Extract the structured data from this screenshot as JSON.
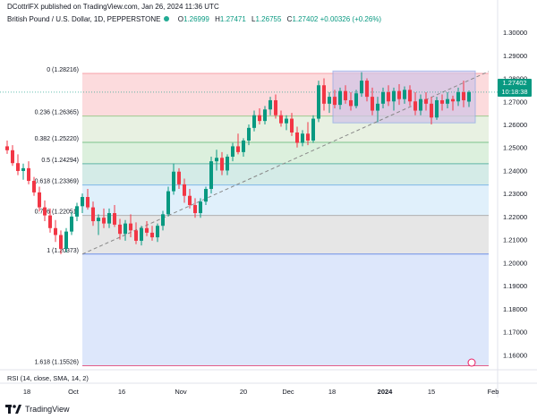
{
  "header": {
    "published_by": "DCottrlFX published on TradingView.com, Jan 26, 2024 11:36 UTC"
  },
  "legend": {
    "symbol": "British Pound / U.S. Dollar, 1D, PEPPERSTONE",
    "open_label": "O",
    "open": "1.26999",
    "high_label": "H",
    "high": "1.27471",
    "low_label": "L",
    "low": "1.26755",
    "close_label": "C",
    "close": "1.27402",
    "change": "+0.00326 (+0.26%)"
  },
  "price_tag": {
    "price": "1.27402",
    "countdown": "10:18:38"
  },
  "rsi_label": "RSI (14, close, SMA, 14, 2)",
  "footer": {
    "brand": "TradingView"
  },
  "colors": {
    "up": "#089981",
    "down": "#f23645",
    "fib0_zone": "#fcd7d9",
    "fib236_zone": "#e6f0df",
    "fib382_zone": "#d8eed9",
    "fib5_zone": "#cfe9e4",
    "fib618_zone": "#ddeefb",
    "fib786_zone": "#e3e3e3",
    "fib1_zone": "#d9e4fb",
    "rectangle": "#d3c5e6"
  },
  "chart_data": {
    "type": "candlestick",
    "title": "British Pound / U.S. Dollar, 1D, PEPPERSTONE",
    "ylim": [
      1.1535,
      1.3078
    ],
    "y_ticks": [
      "1.30000",
      "1.29000",
      "1.28000",
      "1.27000",
      "1.26000",
      "1.25000",
      "1.24000",
      "1.23000",
      "1.22000",
      "1.21000",
      "1.20000",
      "1.19000",
      "1.18000",
      "1.17000",
      "1.16000"
    ],
    "x_ticks": [
      "18",
      "Oct",
      "16",
      "Nov",
      "20",
      "Dec",
      "18",
      "2024",
      "15",
      "Feb"
    ],
    "fibonacci": [
      {
        "ratio": "0",
        "price": 1.28216,
        "label": "0 (1.28216)"
      },
      {
        "ratio": "0.236",
        "price": 1.26365,
        "label": "0.236 (1.26365)"
      },
      {
        "ratio": "0.382",
        "price": 1.2522,
        "label": "0.382 (1.25220)"
      },
      {
        "ratio": "0.5",
        "price": 1.24294,
        "label": "0.5 (1.24294)"
      },
      {
        "ratio": "0.618",
        "price": 1.23369,
        "label": "0.618 (1.23369)"
      },
      {
        "ratio": "0.786",
        "price": 1.22051,
        "label": "0.786 (1.22051)"
      },
      {
        "ratio": "1",
        "price": 1.20373,
        "label": "1 (1.20373)"
      },
      {
        "ratio": "1.618",
        "price": 1.15526,
        "label": "1.618 (1.15526)"
      }
    ],
    "range_box": {
      "top": 1.2832,
      "bottom": 1.2607
    },
    "current_price": 1.27402,
    "candles": [
      {
        "o": 1.2505,
        "h": 1.253,
        "l": 1.2472,
        "c": 1.2488
      },
      {
        "o": 1.2488,
        "h": 1.251,
        "l": 1.242,
        "c": 1.2432
      },
      {
        "o": 1.2432,
        "h": 1.247,
        "l": 1.238,
        "c": 1.2398
      },
      {
        "o": 1.2398,
        "h": 1.243,
        "l": 1.236,
        "c": 1.241
      },
      {
        "o": 1.241,
        "h": 1.244,
        "l": 1.234,
        "c": 1.2355
      },
      {
        "o": 1.2355,
        "h": 1.2372,
        "l": 1.229,
        "c": 1.2305
      },
      {
        "o": 1.2305,
        "h": 1.233,
        "l": 1.2222,
        "c": 1.224
      },
      {
        "o": 1.224,
        "h": 1.227,
        "l": 1.218,
        "c": 1.2205
      },
      {
        "o": 1.2205,
        "h": 1.2235,
        "l": 1.213,
        "c": 1.215
      },
      {
        "o": 1.215,
        "h": 1.2185,
        "l": 1.209,
        "c": 1.212
      },
      {
        "o": 1.212,
        "h": 1.214,
        "l": 1.2037,
        "c": 1.206
      },
      {
        "o": 1.206,
        "h": 1.215,
        "l": 1.2045,
        "c": 1.2135
      },
      {
        "o": 1.2135,
        "h": 1.222,
        "l": 1.212,
        "c": 1.22
      },
      {
        "o": 1.22,
        "h": 1.226,
        "l": 1.218,
        "c": 1.2245
      },
      {
        "o": 1.2245,
        "h": 1.23,
        "l": 1.2215,
        "c": 1.2285
      },
      {
        "o": 1.2285,
        "h": 1.232,
        "l": 1.223,
        "c": 1.224
      },
      {
        "o": 1.224,
        "h": 1.2265,
        "l": 1.216,
        "c": 1.218
      },
      {
        "o": 1.218,
        "h": 1.221,
        "l": 1.212,
        "c": 1.2195
      },
      {
        "o": 1.2195,
        "h": 1.2235,
        "l": 1.215,
        "c": 1.217
      },
      {
        "o": 1.217,
        "h": 1.2235,
        "l": 1.215,
        "c": 1.2215
      },
      {
        "o": 1.2215,
        "h": 1.225,
        "l": 1.2155,
        "c": 1.2165
      },
      {
        "o": 1.2165,
        "h": 1.219,
        "l": 1.21,
        "c": 1.2125
      },
      {
        "o": 1.2125,
        "h": 1.2185,
        "l": 1.2095,
        "c": 1.217
      },
      {
        "o": 1.217,
        "h": 1.221,
        "l": 1.211,
        "c": 1.214
      },
      {
        "o": 1.214,
        "h": 1.2175,
        "l": 1.208,
        "c": 1.2095
      },
      {
        "o": 1.2095,
        "h": 1.216,
        "l": 1.2075,
        "c": 1.215
      },
      {
        "o": 1.215,
        "h": 1.218,
        "l": 1.2115,
        "c": 1.213
      },
      {
        "o": 1.213,
        "h": 1.216,
        "l": 1.2095,
        "c": 1.211
      },
      {
        "o": 1.211,
        "h": 1.217,
        "l": 1.209,
        "c": 1.216
      },
      {
        "o": 1.216,
        "h": 1.2225,
        "l": 1.214,
        "c": 1.221
      },
      {
        "o": 1.221,
        "h": 1.233,
        "l": 1.22,
        "c": 1.231
      },
      {
        "o": 1.231,
        "h": 1.243,
        "l": 1.2295,
        "c": 1.2395
      },
      {
        "o": 1.2395,
        "h": 1.241,
        "l": 1.232,
        "c": 1.234
      },
      {
        "o": 1.234,
        "h": 1.2365,
        "l": 1.226,
        "c": 1.229
      },
      {
        "o": 1.229,
        "h": 1.232,
        "l": 1.2235,
        "c": 1.225
      },
      {
        "o": 1.225,
        "h": 1.228,
        "l": 1.2195,
        "c": 1.2215
      },
      {
        "o": 1.2215,
        "h": 1.228,
        "l": 1.2195,
        "c": 1.2265
      },
      {
        "o": 1.2265,
        "h": 1.233,
        "l": 1.225,
        "c": 1.232
      },
      {
        "o": 1.232,
        "h": 1.246,
        "l": 1.23,
        "c": 1.244
      },
      {
        "o": 1.244,
        "h": 1.249,
        "l": 1.24,
        "c": 1.2455
      },
      {
        "o": 1.2455,
        "h": 1.248,
        "l": 1.238,
        "c": 1.24
      },
      {
        "o": 1.24,
        "h": 1.247,
        "l": 1.238,
        "c": 1.246
      },
      {
        "o": 1.246,
        "h": 1.252,
        "l": 1.244,
        "c": 1.2505
      },
      {
        "o": 1.2505,
        "h": 1.256,
        "l": 1.247,
        "c": 1.248
      },
      {
        "o": 1.248,
        "h": 1.254,
        "l": 1.246,
        "c": 1.253
      },
      {
        "o": 1.253,
        "h": 1.26,
        "l": 1.251,
        "c": 1.2585
      },
      {
        "o": 1.2585,
        "h": 1.266,
        "l": 1.257,
        "c": 1.264
      },
      {
        "o": 1.264,
        "h": 1.267,
        "l": 1.26,
        "c": 1.2615
      },
      {
        "o": 1.2615,
        "h": 1.268,
        "l": 1.26,
        "c": 1.2665
      },
      {
        "o": 1.2665,
        "h": 1.272,
        "l": 1.264,
        "c": 1.2705
      },
      {
        "o": 1.2705,
        "h": 1.273,
        "l": 1.2625,
        "c": 1.264
      },
      {
        "o": 1.264,
        "h": 1.266,
        "l": 1.259,
        "c": 1.2605
      },
      {
        "o": 1.2605,
        "h": 1.264,
        "l": 1.2575,
        "c": 1.2625
      },
      {
        "o": 1.2625,
        "h": 1.265,
        "l": 1.255,
        "c": 1.2565
      },
      {
        "o": 1.2565,
        "h": 1.259,
        "l": 1.25,
        "c": 1.252
      },
      {
        "o": 1.252,
        "h": 1.2575,
        "l": 1.2505,
        "c": 1.256
      },
      {
        "o": 1.256,
        "h": 1.261,
        "l": 1.251,
        "c": 1.253
      },
      {
        "o": 1.253,
        "h": 1.264,
        "l": 1.252,
        "c": 1.2625
      },
      {
        "o": 1.2625,
        "h": 1.279,
        "l": 1.261,
        "c": 1.277
      },
      {
        "o": 1.277,
        "h": 1.28,
        "l": 1.266,
        "c": 1.269
      },
      {
        "o": 1.269,
        "h": 1.274,
        "l": 1.265,
        "c": 1.272
      },
      {
        "o": 1.272,
        "h": 1.275,
        "l": 1.267,
        "c": 1.2685
      },
      {
        "o": 1.2685,
        "h": 1.276,
        "l": 1.2665,
        "c": 1.2745
      },
      {
        "o": 1.2745,
        "h": 1.277,
        "l": 1.269,
        "c": 1.2705
      },
      {
        "o": 1.2705,
        "h": 1.274,
        "l": 1.266,
        "c": 1.268
      },
      {
        "o": 1.268,
        "h": 1.275,
        "l": 1.267,
        "c": 1.2735
      },
      {
        "o": 1.2735,
        "h": 1.2827,
        "l": 1.272,
        "c": 1.279
      },
      {
        "o": 1.279,
        "h": 1.28,
        "l": 1.27,
        "c": 1.272
      },
      {
        "o": 1.272,
        "h": 1.276,
        "l": 1.264,
        "c": 1.266
      },
      {
        "o": 1.266,
        "h": 1.272,
        "l": 1.261,
        "c": 1.269
      },
      {
        "o": 1.269,
        "h": 1.276,
        "l": 1.267,
        "c": 1.274
      },
      {
        "o": 1.274,
        "h": 1.277,
        "l": 1.268,
        "c": 1.27
      },
      {
        "o": 1.27,
        "h": 1.276,
        "l": 1.266,
        "c": 1.2745
      },
      {
        "o": 1.2745,
        "h": 1.2775,
        "l": 1.2685,
        "c": 1.271
      },
      {
        "o": 1.271,
        "h": 1.2765,
        "l": 1.269,
        "c": 1.275
      },
      {
        "o": 1.275,
        "h": 1.277,
        "l": 1.268,
        "c": 1.27
      },
      {
        "o": 1.27,
        "h": 1.274,
        "l": 1.264,
        "c": 1.266
      },
      {
        "o": 1.266,
        "h": 1.273,
        "l": 1.264,
        "c": 1.271
      },
      {
        "o": 1.271,
        "h": 1.274,
        "l": 1.266,
        "c": 1.269
      },
      {
        "o": 1.269,
        "h": 1.272,
        "l": 1.26,
        "c": 1.263
      },
      {
        "o": 1.263,
        "h": 1.272,
        "l": 1.262,
        "c": 1.2705
      },
      {
        "o": 1.2705,
        "h": 1.273,
        "l": 1.266,
        "c": 1.269
      },
      {
        "o": 1.269,
        "h": 1.274,
        "l": 1.267,
        "c": 1.271
      },
      {
        "o": 1.271,
        "h": 1.2725,
        "l": 1.266,
        "c": 1.27
      },
      {
        "o": 1.27,
        "h": 1.276,
        "l": 1.268,
        "c": 1.274
      },
      {
        "o": 1.274,
        "h": 1.279,
        "l": 1.2675,
        "c": 1.2705
      },
      {
        "o": 1.2699,
        "h": 1.27471,
        "l": 1.26755,
        "c": 1.27402
      }
    ]
  }
}
